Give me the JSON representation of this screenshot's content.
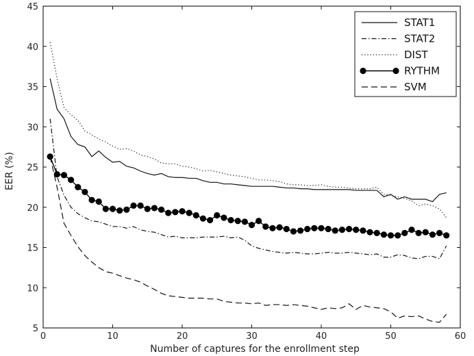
{
  "chart_data": {
    "type": "line",
    "title": "",
    "xlabel": "Number of captures for the enrollment step",
    "ylabel": "EER (%)",
    "xlim": [
      0,
      60
    ],
    "ylim": [
      5,
      45
    ],
    "xticks": [
      0,
      10,
      20,
      30,
      40,
      50,
      60
    ],
    "yticks": [
      5,
      10,
      15,
      20,
      25,
      30,
      35,
      40,
      45
    ],
    "grid": false,
    "legend_position": "top-right",
    "x": [
      1,
      2,
      3,
      4,
      5,
      6,
      7,
      8,
      9,
      10,
      11,
      12,
      13,
      14,
      15,
      16,
      17,
      18,
      19,
      20,
      21,
      22,
      23,
      24,
      25,
      26,
      27,
      28,
      29,
      30,
      31,
      32,
      33,
      34,
      35,
      36,
      37,
      38,
      39,
      40,
      41,
      42,
      43,
      44,
      45,
      46,
      47,
      48,
      49,
      50,
      51,
      52,
      53,
      54,
      55,
      56,
      57,
      58
    ],
    "series": [
      {
        "name": "STAT1",
        "style": "solid",
        "color": "#111111",
        "values": [
          36.0,
          32.2,
          31.0,
          28.8,
          27.8,
          27.5,
          26.3,
          27.0,
          26.2,
          25.6,
          25.7,
          25.1,
          24.9,
          24.5,
          24.2,
          24.0,
          24.2,
          23.8,
          23.7,
          23.7,
          23.6,
          23.6,
          23.3,
          23.1,
          23.1,
          22.9,
          22.9,
          22.8,
          22.7,
          22.6,
          22.6,
          22.6,
          22.6,
          22.5,
          22.4,
          22.4,
          22.3,
          22.3,
          22.2,
          22.2,
          22.2,
          22.2,
          22.2,
          22.2,
          22.1,
          22.1,
          22.1,
          22.1,
          21.3,
          21.6,
          21.0,
          21.3,
          21.0,
          21.0,
          21.0,
          20.7,
          21.6,
          21.8
        ]
      },
      {
        "name": "STAT2",
        "style": "dashdot",
        "color": "#111111",
        "values": [
          31.0,
          23.8,
          21.5,
          20.0,
          19.2,
          18.7,
          18.3,
          18.2,
          17.9,
          17.6,
          17.6,
          17.4,
          17.6,
          17.2,
          17.0,
          16.9,
          16.6,
          16.3,
          16.4,
          16.2,
          16.2,
          16.2,
          16.3,
          16.3,
          16.3,
          16.4,
          16.2,
          16.3,
          15.9,
          15.2,
          14.9,
          14.7,
          14.5,
          14.4,
          14.3,
          14.4,
          14.3,
          14.2,
          14.2,
          14.3,
          14.4,
          14.3,
          14.3,
          14.4,
          14.3,
          14.2,
          14.1,
          14.2,
          13.8,
          13.8,
          14.1,
          14.0,
          13.7,
          13.6,
          13.9,
          13.9,
          13.6,
          15.2
        ]
      },
      {
        "name": "DIST",
        "style": "dotted",
        "color": "#111111",
        "values": [
          40.5,
          36.0,
          32.4,
          31.5,
          30.8,
          29.5,
          29.0,
          28.5,
          28.1,
          27.6,
          27.2,
          27.3,
          27.0,
          26.5,
          26.3,
          26.0,
          25.5,
          25.4,
          25.4,
          25.1,
          25.0,
          24.8,
          24.5,
          24.6,
          24.4,
          24.2,
          24.0,
          23.9,
          23.8,
          23.6,
          23.4,
          23.4,
          23.3,
          23.2,
          22.9,
          22.8,
          22.8,
          22.7,
          22.7,
          22.8,
          22.6,
          22.5,
          22.5,
          22.4,
          22.3,
          22.3,
          22.3,
          22.5,
          21.6,
          21.5,
          21.3,
          21.1,
          20.8,
          20.2,
          20.4,
          20.2,
          19.8,
          18.7
        ]
      },
      {
        "name": "RYTHM",
        "style": "solid-marker",
        "color": "#000000",
        "values": [
          26.3,
          24.1,
          24.0,
          23.4,
          22.5,
          21.9,
          20.9,
          20.7,
          19.8,
          19.8,
          19.6,
          19.7,
          20.2,
          20.2,
          19.8,
          19.9,
          19.7,
          19.3,
          19.4,
          19.5,
          19.3,
          19.0,
          18.6,
          18.4,
          19.0,
          18.7,
          18.4,
          18.3,
          18.2,
          17.8,
          18.3,
          17.6,
          17.4,
          17.5,
          17.3,
          17.0,
          17.1,
          17.3,
          17.4,
          17.4,
          17.3,
          17.1,
          17.2,
          17.3,
          17.2,
          17.1,
          16.9,
          16.8,
          16.6,
          16.5,
          16.5,
          16.8,
          17.2,
          16.8,
          16.9,
          16.6,
          16.8,
          16.5
        ]
      },
      {
        "name": "SVM",
        "style": "dashed",
        "color": "#111111",
        "values": [
          26.3,
          22.5,
          18.0,
          16.5,
          15.1,
          14.0,
          13.2,
          12.5,
          12.0,
          11.8,
          11.5,
          11.2,
          11.0,
          10.7,
          10.2,
          9.8,
          9.3,
          9.0,
          8.9,
          8.8,
          8.7,
          8.7,
          8.7,
          8.6,
          8.6,
          8.3,
          8.2,
          8.1,
          8.1,
          8.0,
          8.1,
          7.8,
          7.9,
          7.9,
          7.8,
          7.9,
          7.8,
          7.7,
          7.5,
          7.3,
          7.5,
          7.4,
          7.5,
          8.0,
          7.3,
          7.8,
          7.6,
          7.5,
          7.4,
          7.0,
          6.2,
          6.5,
          6.4,
          6.5,
          6.1,
          5.8,
          5.7,
          6.7
        ]
      }
    ]
  }
}
